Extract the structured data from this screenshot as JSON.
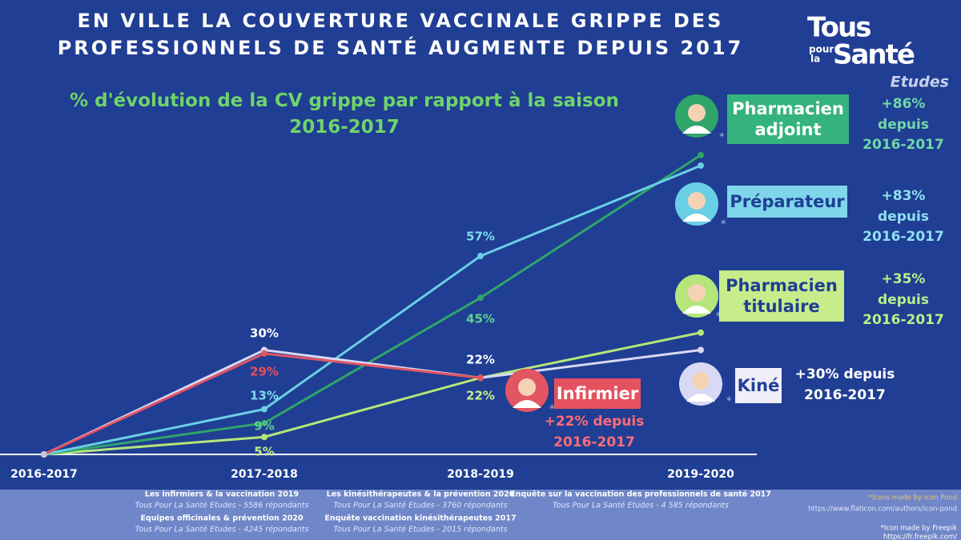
{
  "chart_data": {
    "type": "line",
    "title": "EN VILLE LA COUVERTURE VACCINALE GRIPPE DES PROFESSIONNELS DE SANTÉ AUGMENTE DEPUIS 2017",
    "subtitle": "% d'évolution de la CV grippe par rapport à la saison 2016-2017",
    "categories": [
      "2016-2017",
      "2017-2018",
      "2018-2019",
      "2019-2020"
    ],
    "ylim": [
      0,
      100
    ],
    "icon_marker": "*",
    "series": [
      {
        "name": "Pharmacien adjoint",
        "color": "#2fa56a",
        "values": [
          0,
          9,
          45,
          86
        ],
        "value_labels": [
          null,
          "9%",
          "45%",
          null
        ],
        "annotation": "+86% depuis 2016-2017"
      },
      {
        "name": "Préparateur",
        "color": "#69cfe6",
        "values": [
          0,
          13,
          57,
          83
        ],
        "value_labels": [
          null,
          "13%",
          "57%",
          null
        ],
        "annotation": "+83% depuis 2016-2017"
      },
      {
        "name": "Pharmacien titulaire",
        "color": "#b6e67a",
        "values": [
          0,
          5,
          22,
          35
        ],
        "value_labels": [
          null,
          "5%",
          "22%",
          null
        ],
        "annotation": "+35% depuis 2016-2017"
      },
      {
        "name": "Kiné",
        "color": "#d9d8f5",
        "values": [
          0,
          30,
          22,
          30
        ],
        "value_labels": [
          null,
          "30%",
          "22%",
          null
        ],
        "annotation": "+30% depuis 2016-2017"
      },
      {
        "name": "Infirmier",
        "color": "#e25563",
        "values": [
          0,
          29,
          22,
          null
        ],
        "value_labels": [
          null,
          "29%",
          null,
          null
        ],
        "annotation": "+22% depuis 2016-2017"
      }
    ]
  },
  "logo": {
    "line1": "Tous",
    "small1": "pour",
    "small2": "la",
    "line2": "Santé",
    "sub": "Etudes"
  },
  "sources": [
    {
      "title": "Les infirmiers & la vaccination 2019",
      "detail": "Tous Pour La Santé Etudes - 5586 répondants"
    },
    {
      "title": "Equipes officinales & prévention 2020",
      "detail": "Tous Pour La Santé Etudes - 4245 répondants"
    },
    {
      "title": "Les kinésithérapeutes & la prévention 2020",
      "detail": "Tous Pour La Santé Etudes - 3760 répondants"
    },
    {
      "title": "Enquête vaccination kinésithérapeutes 2017",
      "detail": "Tous Pour La Santé Etudes -  2015 répondants"
    },
    {
      "title": "Enquête sur la vaccination des professionnels de santé 2017",
      "detail": "Tous Pour La Santé Etudes -  4 585 répondants"
    }
  ],
  "credits": [
    "*Icons made by Icon Pond",
    "https://www.flaticon.com/authors/icon-pond",
    "*Icon made by Freepik",
    "https://fr.freepik.com/"
  ]
}
